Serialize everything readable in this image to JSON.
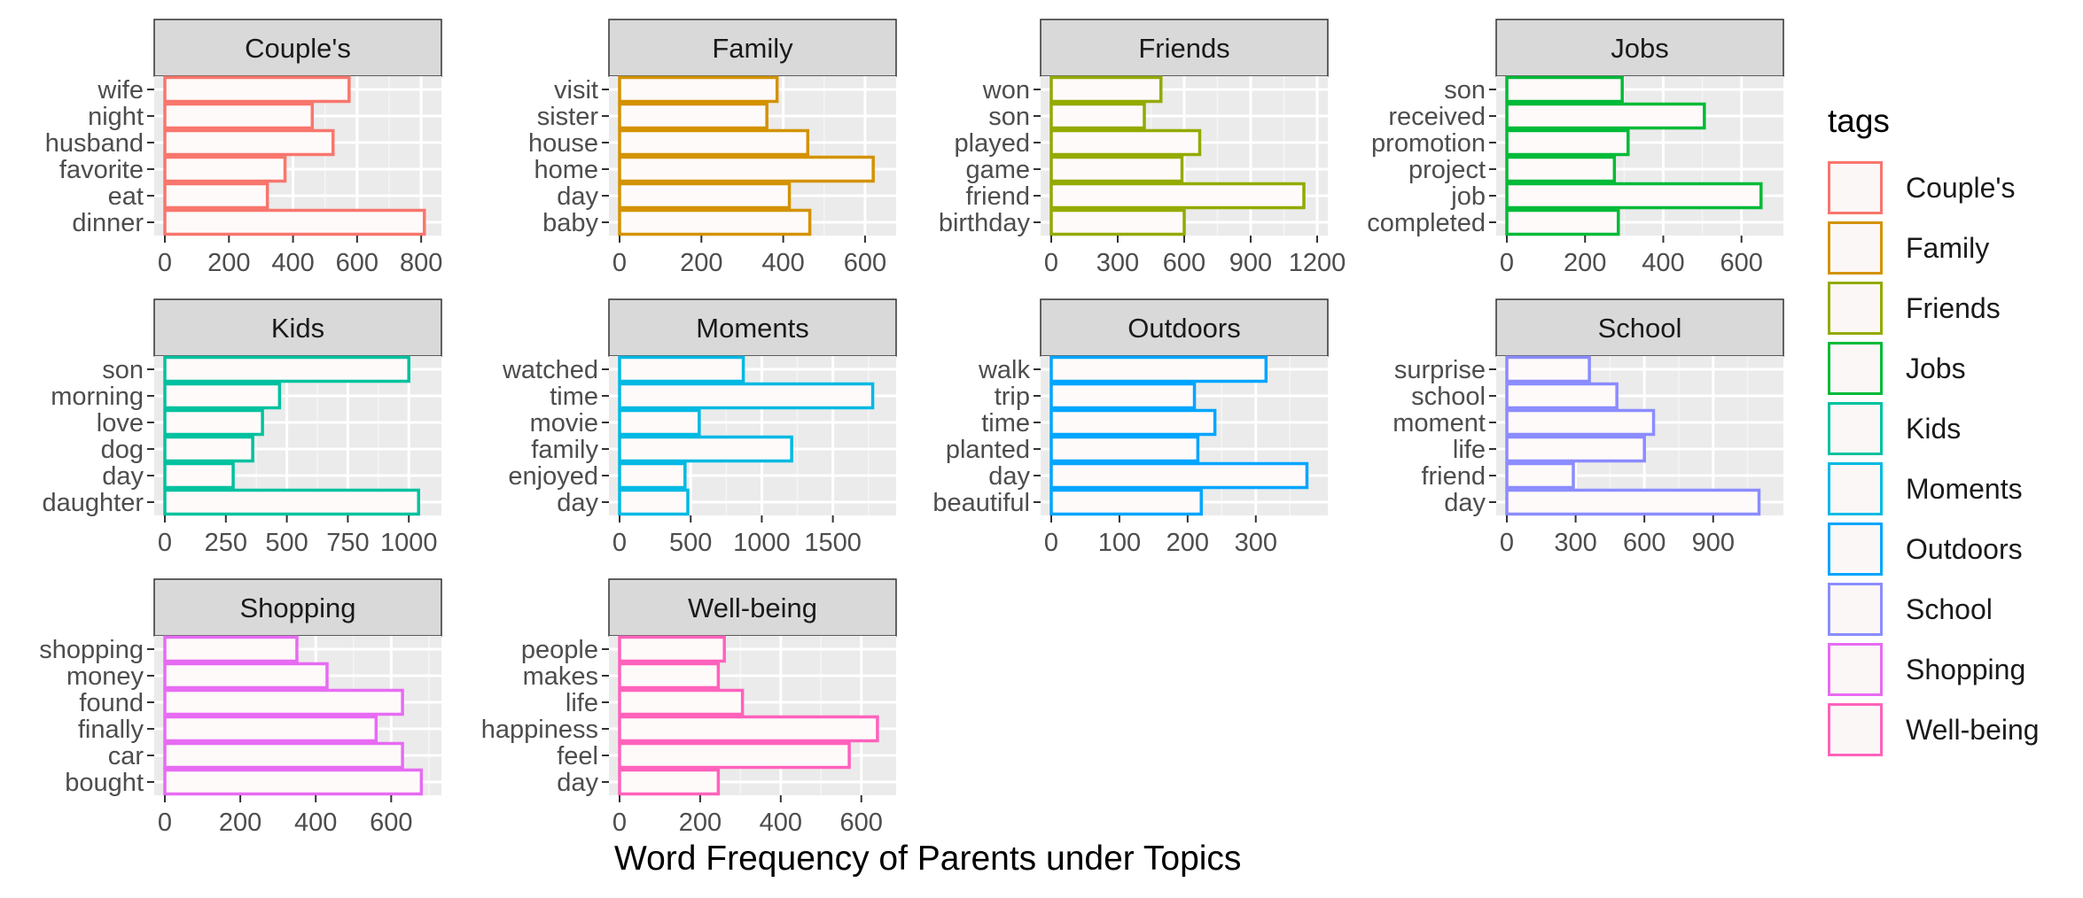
{
  "chart_data": {
    "type": "bar",
    "orientation": "horizontal",
    "facet": true,
    "xlabel": "Word Frequency of Parents under Topics",
    "legend": {
      "title": "tags",
      "placement": "right"
    },
    "grid": true,
    "panels": [
      {
        "title": "Couple's",
        "color": "#F8766D",
        "categories": [
          "wife",
          "night",
          "husband",
          "favorite",
          "eat",
          "dinner"
        ],
        "values": [
          575,
          460,
          525,
          375,
          320,
          810
        ],
        "xlim": [
          0,
          830
        ],
        "ticks": [
          0,
          200,
          400,
          600,
          800
        ]
      },
      {
        "title": "Family",
        "color": "#D39200",
        "categories": [
          "visit",
          "sister",
          "house",
          "home",
          "day",
          "baby"
        ],
        "values": [
          385,
          360,
          460,
          620,
          415,
          465
        ],
        "xlim": [
          0,
          650
        ],
        "ticks": [
          0,
          200,
          400,
          600
        ]
      },
      {
        "title": "Friends",
        "color": "#93AA00",
        "categories": [
          "won",
          "son",
          "played",
          "game",
          "friend",
          "birthday"
        ],
        "values": [
          495,
          420,
          670,
          590,
          1140,
          600
        ],
        "xlim": [
          0,
          1200
        ],
        "ticks": [
          0,
          300,
          600,
          900,
          1200
        ]
      },
      {
        "title": "Jobs",
        "color": "#00BA38",
        "categories": [
          "son",
          "received",
          "promotion",
          "project",
          "job",
          "completed"
        ],
        "values": [
          295,
          505,
          310,
          275,
          650,
          285
        ],
        "xlim": [
          0,
          680
        ],
        "ticks": [
          0,
          200,
          400,
          600
        ]
      },
      {
        "title": "Kids",
        "color": "#00C19F",
        "categories": [
          "son",
          "morning",
          "love",
          "dog",
          "day",
          "daughter"
        ],
        "values": [
          1000,
          470,
          400,
          360,
          280,
          1040
        ],
        "xlim": [
          0,
          1090
        ],
        "ticks": [
          0,
          250,
          500,
          750,
          1000
        ]
      },
      {
        "title": "Moments",
        "color": "#00B9E3",
        "categories": [
          "watched",
          "time",
          "movie",
          "family",
          "enjoyed",
          "day"
        ],
        "values": [
          870,
          1780,
          560,
          1210,
          460,
          480
        ],
        "xlim": [
          0,
          1870
        ],
        "ticks": [
          0,
          500,
          1000,
          1500
        ]
      },
      {
        "title": "Outdoors",
        "color": "#00A5FF",
        "categories": [
          "walk",
          "trip",
          "time",
          "planted",
          "day",
          "beautiful"
        ],
        "values": [
          315,
          210,
          240,
          215,
          375,
          220
        ],
        "xlim": [
          0,
          390
        ],
        "ticks": [
          0,
          100,
          200,
          300
        ]
      },
      {
        "title": "School",
        "color": "#8B8CFF",
        "categories": [
          "surprise",
          "school",
          "moment",
          "life",
          "friend",
          "day"
        ],
        "values": [
          360,
          480,
          640,
          600,
          290,
          1100
        ],
        "xlim": [
          0,
          1160
        ],
        "ticks": [
          0,
          300,
          600,
          900
        ]
      },
      {
        "title": "Shopping",
        "color": "#E76BF3",
        "categories": [
          "shopping",
          "money",
          "found",
          "finally",
          "car",
          "bought"
        ],
        "values": [
          350,
          430,
          630,
          560,
          630,
          680
        ],
        "xlim": [
          0,
          705
        ],
        "ticks": [
          0,
          200,
          400,
          600
        ]
      },
      {
        "title": "Well-being",
        "color": "#FF62BC",
        "categories": [
          "people",
          "makes",
          "life",
          "happiness",
          "feel",
          "day"
        ],
        "values": [
          260,
          245,
          305,
          640,
          570,
          245
        ],
        "xlim": [
          0,
          660
        ],
        "ticks": [
          0,
          200,
          400,
          600
        ]
      }
    ]
  }
}
